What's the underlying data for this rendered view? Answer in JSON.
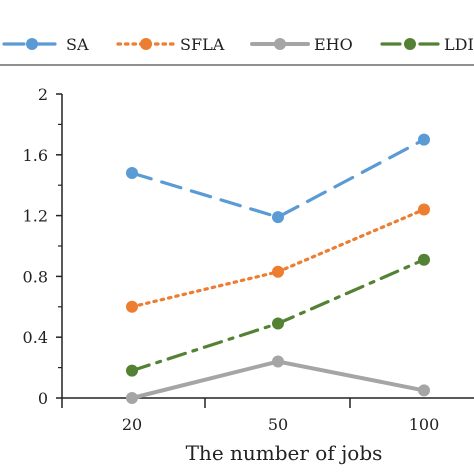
{
  "chart_data": {
    "type": "line",
    "categories": [
      "20",
      "50",
      "100"
    ],
    "xlabel": "The number of jobs",
    "ylabel": "",
    "ylim": [
      0,
      2
    ],
    "yticks": [
      "0",
      "0.4",
      "0.8",
      "1.2",
      "1.6",
      "2"
    ],
    "grid": false,
    "legend": "top",
    "series": [
      {
        "name": "SA",
        "values": [
          1.48,
          1.19,
          1.7
        ],
        "color": "#5b9bd5",
        "dash": "long-dash"
      },
      {
        "name": "SFLA",
        "values": [
          0.6,
          0.83,
          1.24
        ],
        "color": "#ed7d31",
        "dash": "dotted"
      },
      {
        "name": "EHO",
        "values": [
          0.0,
          0.24,
          0.05
        ],
        "color": "#a5a5a5",
        "dash": "solid"
      },
      {
        "name": "LDI",
        "values": [
          0.18,
          0.49,
          0.91
        ],
        "color": "#548235",
        "dash": "dash-dot"
      }
    ]
  }
}
